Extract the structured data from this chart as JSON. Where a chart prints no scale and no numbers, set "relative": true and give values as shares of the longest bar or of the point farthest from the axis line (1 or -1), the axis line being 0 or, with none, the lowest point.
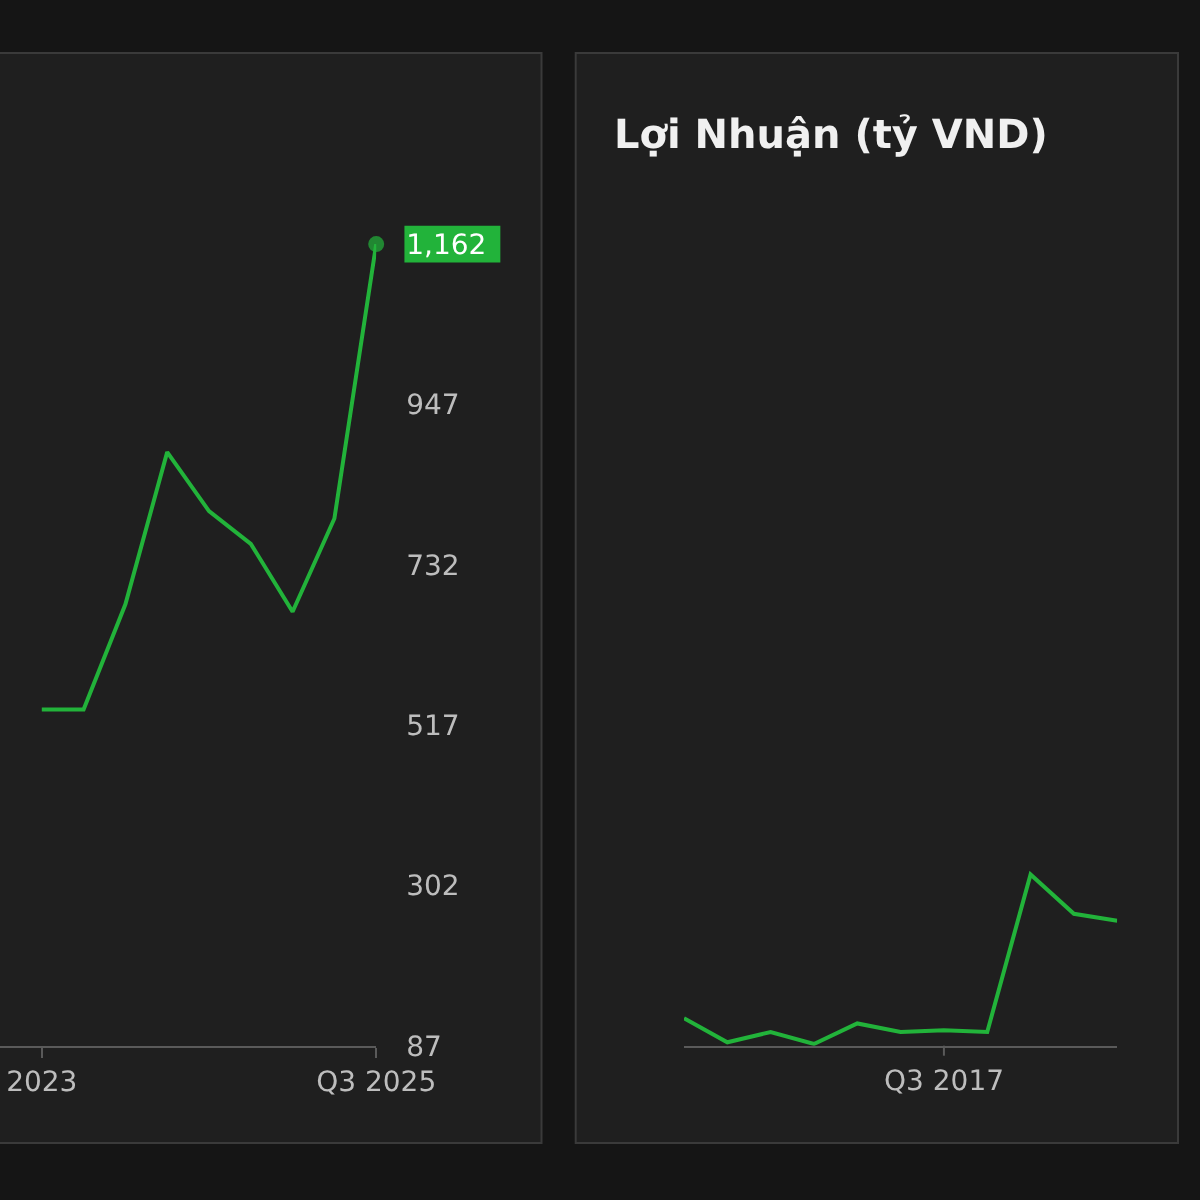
{
  "chart_data": [
    {
      "type": "line",
      "categories": [
        "2023",
        null,
        null,
        null,
        null,
        null,
        null,
        null,
        "Q3 2025"
      ],
      "series": [
        {
          "color": "#22b33a",
          "values": [
            538,
            538,
            679,
            883,
            804,
            760,
            669,
            794,
            1162
          ]
        }
      ],
      "ylim": [
        87,
        1162
      ],
      "yticks": [
        87,
        302,
        517,
        732,
        947,
        {
          "value": 1162,
          "label": "1,162"
        }
      ],
      "grid": false
    },
    {
      "type": "line",
      "title": "Lợi Nhuận (tỷ VND)",
      "relative": true,
      "categories": [
        null,
        null,
        null,
        null,
        null,
        null,
        null,
        null,
        null,
        null,
        null
      ],
      "annotations": [
        "Q3 2017"
      ],
      "series": [
        {
          "color": "#22b33a",
          "values": [
            0.16,
            0.02,
            0.08,
            0.01,
            0.13,
            0.08,
            0.09,
            0.08,
            1,
            0.77,
            0.73
          ]
        }
      ],
      "grid": false
    }
  ]
}
